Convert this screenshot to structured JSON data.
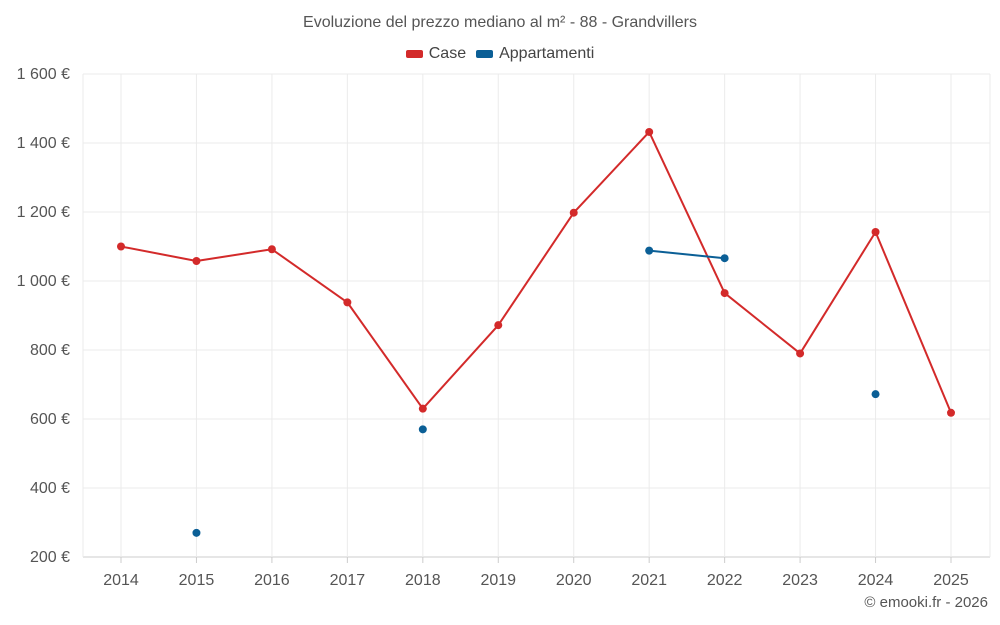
{
  "chart_data": {
    "type": "line",
    "title": "Evoluzione del prezzo mediano al m² - 88 - Grandvillers",
    "categories": [
      "2014",
      "2015",
      "2016",
      "2017",
      "2018",
      "2019",
      "2020",
      "2021",
      "2022",
      "2023",
      "2024",
      "2025"
    ],
    "series": [
      {
        "name": "Case",
        "color": "#d32a2a",
        "values": [
          1100,
          1058,
          1092,
          938,
          630,
          872,
          1198,
          1432,
          965,
          790,
          1142,
          618
        ]
      },
      {
        "name": "Appartamenti",
        "color": "#0b5f96",
        "values": [
          null,
          270,
          null,
          null,
          570,
          null,
          null,
          1088,
          1066,
          null,
          672,
          null
        ]
      }
    ],
    "ylim": [
      200,
      1600
    ],
    "yticks": [
      200,
      400,
      600,
      800,
      1000,
      1200,
      1400,
      1600
    ],
    "ytick_labels": [
      "200 €",
      "400 €",
      "600 €",
      "800 €",
      "1 000 €",
      "1 200 €",
      "1 400 €",
      "1 600 €"
    ],
    "grid": true,
    "legend_position": "top-center"
  },
  "credit": "© emooki.fr - 2026"
}
